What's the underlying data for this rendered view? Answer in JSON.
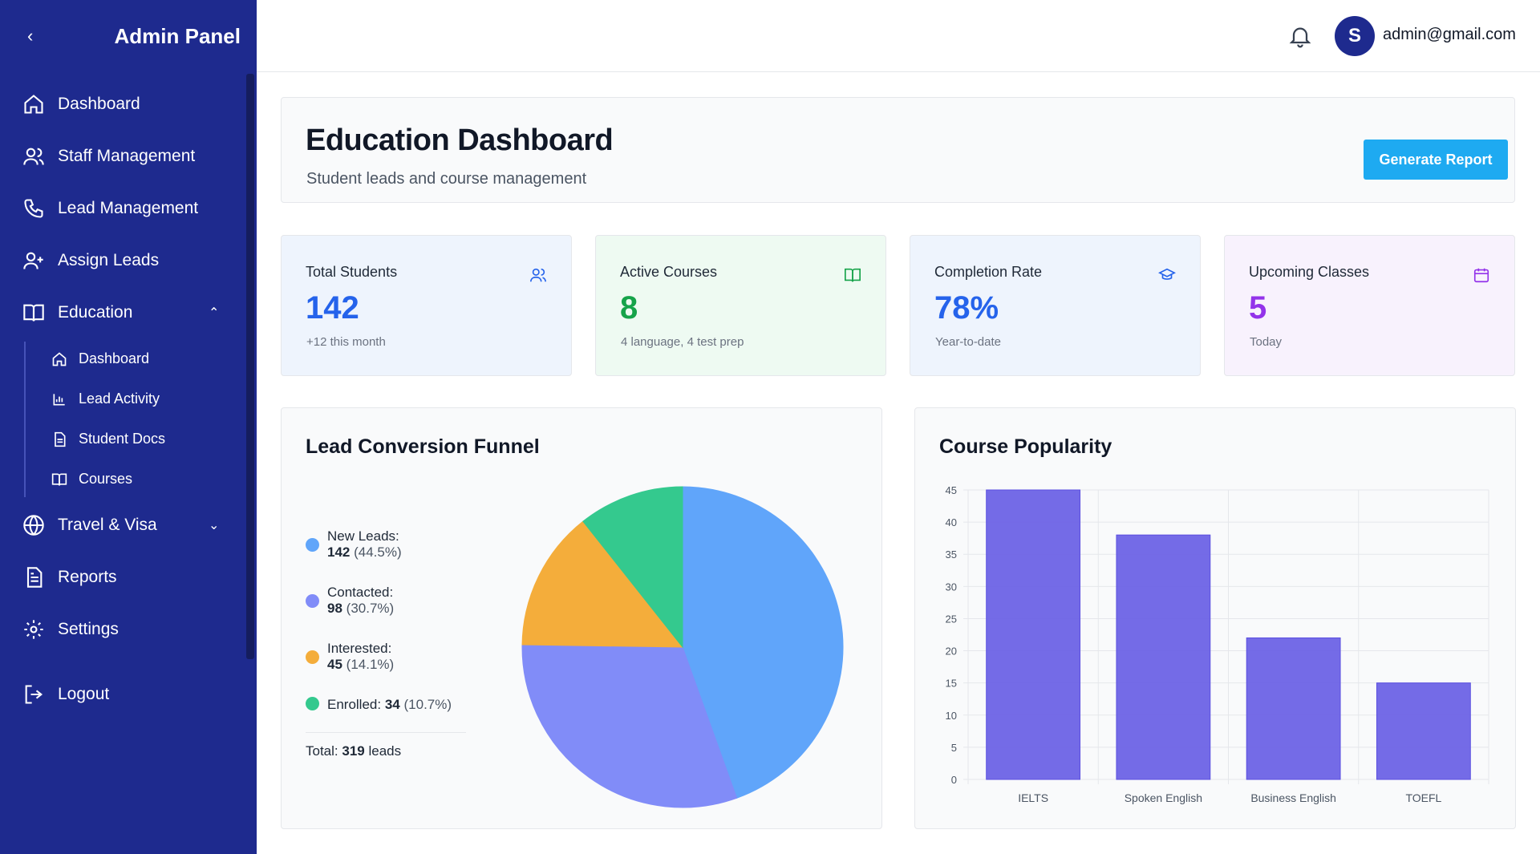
{
  "sidebar": {
    "title": "Admin Panel",
    "items": [
      {
        "label": "Dashboard",
        "icon": "home-icon"
      },
      {
        "label": "Staff Management",
        "icon": "users-icon"
      },
      {
        "label": "Lead Management",
        "icon": "phone-icon"
      },
      {
        "label": "Assign Leads",
        "icon": "user-plus-icon"
      },
      {
        "label": "Education",
        "icon": "book-open-icon",
        "expanded": true
      },
      {
        "label": "Travel & Visa",
        "icon": "globe-icon",
        "expanded": false
      },
      {
        "label": "Reports",
        "icon": "file-text-icon"
      },
      {
        "label": "Settings",
        "icon": "gear-icon"
      }
    ],
    "sub_items": [
      {
        "label": "Dashboard",
        "icon": "home-icon"
      },
      {
        "label": "Lead Activity",
        "icon": "bar-chart-icon"
      },
      {
        "label": "Student Docs",
        "icon": "document-icon"
      },
      {
        "label": "Courses",
        "icon": "book-open-icon"
      }
    ],
    "logout": "Logout"
  },
  "topbar": {
    "avatar_initial": "S",
    "email": "admin@gmail.com"
  },
  "header": {
    "title": "Education Dashboard",
    "subtitle": "Student leads and course management",
    "button": "Generate Report"
  },
  "stats": [
    {
      "label": "Total Students",
      "value": "142",
      "sub": "+12 this month",
      "color": "#2563eb",
      "bg": "#eef4fd",
      "icon": "users-icon"
    },
    {
      "label": "Active Courses",
      "value": "8",
      "sub": "4 language, 4 test prep",
      "color": "#16a34a",
      "bg": "#eefaf2",
      "icon": "book-open-icon"
    },
    {
      "label": "Completion Rate",
      "value": "78%",
      "sub": "Year-to-date",
      "color": "#2563eb",
      "bg": "#eef4fd",
      "icon": "graduation-cap-icon"
    },
    {
      "label": "Upcoming Classes",
      "value": "5",
      "sub": "Today",
      "color": "#9333ea",
      "bg": "#f8f2fd",
      "icon": "calendar-icon"
    }
  ],
  "funnel": {
    "title": "Lead Conversion Funnel",
    "legend": [
      {
        "name": "New Leads:",
        "value": "142",
        "pct": "(44.5%)",
        "color": "#60a5fa"
      },
      {
        "name": "Contacted:",
        "value": "98",
        "pct": "(30.7%)",
        "color": "#818cf8"
      },
      {
        "name": "Interested:",
        "value": "45",
        "pct": "(14.1%)",
        "color": "#f4ad3b"
      },
      {
        "name": "Enrolled:",
        "value": "34",
        "pct": "(10.7%)",
        "color": "#34c98e"
      }
    ],
    "total_label": "Total:",
    "total_value": "319",
    "total_unit": "leads"
  },
  "popularity": {
    "title": "Course Popularity"
  },
  "chart_data": [
    {
      "type": "pie",
      "title": "Lead Conversion Funnel",
      "categories": [
        "New Leads",
        "Contacted",
        "Interested",
        "Enrolled"
      ],
      "values": [
        142,
        98,
        45,
        34
      ],
      "colors": [
        "#60a5fa",
        "#818cf8",
        "#f4ad3b",
        "#34c98e"
      ]
    },
    {
      "type": "bar",
      "title": "Course Popularity",
      "categories": [
        "IELTS",
        "Spoken English",
        "Business English",
        "TOEFL"
      ],
      "values": [
        45,
        38,
        22,
        15
      ],
      "ylim": [
        0,
        45
      ],
      "yticks": [
        0,
        5,
        10,
        15,
        20,
        25,
        30,
        35,
        40,
        45
      ],
      "grid": true,
      "color": "#6d63e6"
    }
  ]
}
